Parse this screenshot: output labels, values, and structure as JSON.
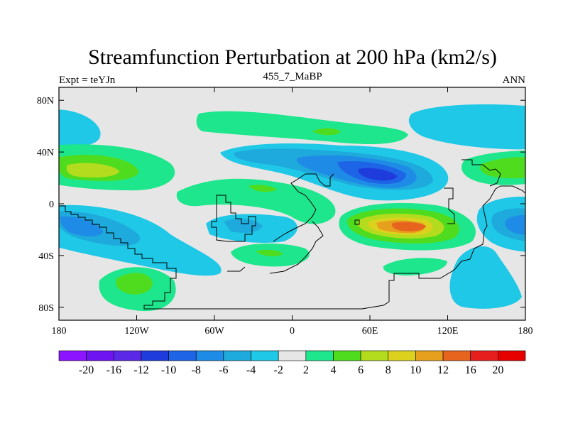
{
  "chart_data": {
    "type": "heatmap",
    "title": "Streamfunction Perturbation at 200 hPa (km2/s)",
    "subtitle_left": "Expt = teYJn",
    "subtitle_center": "455_7_MaBP",
    "subtitle_right": "ANN",
    "x_axis": {
      "range": [
        -180,
        180
      ],
      "ticks": [
        -180,
        -120,
        -60,
        0,
        60,
        120,
        180
      ],
      "tick_labels": [
        "180",
        "120W",
        "60W",
        "0",
        "60E",
        "120E",
        "180"
      ]
    },
    "y_axis": {
      "range": [
        -90,
        90
      ],
      "ticks": [
        80,
        40,
        0,
        -40,
        -80
      ],
      "tick_labels": [
        "80N",
        "40N",
        "0",
        "40S",
        "80S"
      ]
    },
    "colorbar": {
      "labels": [
        "-20",
        "-16",
        "-12",
        "-10",
        "-8",
        "-6",
        "-4",
        "-2",
        "2",
        "4",
        "6",
        "8",
        "10",
        "12",
        "16",
        "20"
      ],
      "colors": [
        "#8c14ff",
        "#6e14f0",
        "#5a28e6",
        "#1e3cdc",
        "#1e64e6",
        "#1e8ce6",
        "#1eaadc",
        "#1ec8e6",
        "#e6e6e6",
        "#1ee68c",
        "#50dc1e",
        "#b4dc1e",
        "#dcd21e",
        "#e6a01e",
        "#e6641e",
        "#e61e1e",
        "#e60000"
      ]
    },
    "features": [
      {
        "name": "south-pacific-negative",
        "type": "low",
        "lon": -150,
        "lat": -18,
        "peak": -6
      },
      {
        "name": "north-pacific-positive",
        "type": "high",
        "lon": -155,
        "lat": 25,
        "peak": 8
      },
      {
        "name": "north-pacific-upper-negative",
        "type": "low",
        "lon": -170,
        "lat": 58,
        "peak": -4
      },
      {
        "name": "south-ocean-positive",
        "type": "high",
        "lon": -128,
        "lat": -60,
        "peak": 6
      },
      {
        "name": "atlantic-negative",
        "type": "low",
        "lon": -35,
        "lat": -18,
        "peak": -4
      },
      {
        "name": "eurasia-negative",
        "type": "low",
        "lon": 65,
        "lat": 18,
        "peak": -10
      },
      {
        "name": "indian-ocean-positive",
        "type": "high",
        "lon": 90,
        "lat": -18,
        "peak": 16
      },
      {
        "name": "north-pacific-west-negative",
        "type": "low",
        "lon": 165,
        "lat": 68,
        "peak": -4
      },
      {
        "name": "west-pacific-positive",
        "type": "high",
        "lon": 165,
        "lat": 25,
        "peak": 6
      },
      {
        "name": "east-pacific-negative",
        "type": "low",
        "lon": 165,
        "lat": -18,
        "peak": -6
      },
      {
        "name": "south-pacific-east-negative",
        "type": "low",
        "lon": 140,
        "lat": -65,
        "peak": -4
      }
    ]
  }
}
